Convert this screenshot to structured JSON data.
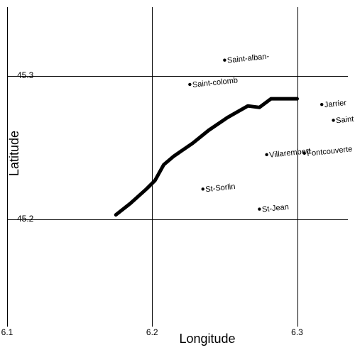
{
  "chart_data": {
    "type": "map",
    "xlabel": "Longitude",
    "ylabel": "Latitude",
    "xlim": [
      6.1,
      6.335
    ],
    "ylim": [
      45.125,
      45.348
    ],
    "x_ticks": [
      {
        "value": 6.1,
        "label": "6.1"
      },
      {
        "value": 6.2,
        "label": "6.2"
      },
      {
        "value": 6.3,
        "label": "6.3"
      }
    ],
    "y_ticks": [
      {
        "value": 45.2,
        "label": "45.2"
      },
      {
        "value": 45.3,
        "label": "45.3"
      }
    ],
    "gridlines": {
      "vertical": [
        6.2,
        6.3
      ],
      "horizontal": [
        45.2,
        45.3
      ]
    },
    "places": [
      {
        "name": "Saint-alban-",
        "lon": 6.25,
        "lat": 45.311
      },
      {
        "name": "Saint-colomb",
        "lon": 6.226,
        "lat": 45.294
      },
      {
        "name": "Jarrier",
        "lon": 6.317,
        "lat": 45.28
      },
      {
        "name": "Saint",
        "lon": 6.325,
        "lat": 45.269
      },
      {
        "name": "Villarembert",
        "lon": 6.279,
        "lat": 45.245
      },
      {
        "name": "Fontcouverte",
        "lon": 6.305,
        "lat": 45.246
      },
      {
        "name": "St-Sorlin",
        "lon": 6.235,
        "lat": 45.221
      },
      {
        "name": "St-Jean",
        "lon": 6.274,
        "lat": 45.207
      }
    ],
    "route": [
      [
        6.175,
        45.203
      ],
      [
        6.185,
        45.211
      ],
      [
        6.196,
        45.221
      ],
      [
        6.202,
        45.227
      ],
      [
        6.208,
        45.238
      ],
      [
        6.215,
        45.244
      ],
      [
        6.228,
        45.253
      ],
      [
        6.239,
        45.262
      ],
      [
        6.252,
        45.271
      ],
      [
        6.266,
        45.279
      ],
      [
        6.274,
        45.278
      ],
      [
        6.282,
        45.284
      ],
      [
        6.3,
        45.284
      ]
    ],
    "route_color": "#000000"
  }
}
